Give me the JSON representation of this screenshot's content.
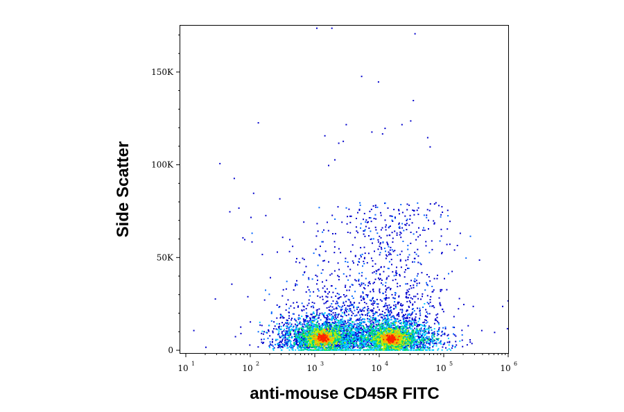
{
  "chart_data": {
    "type": "scatter",
    "subtype": "flow-cytometry-density-dot-plot",
    "xlabel": "anti-mouse CD45R FITC",
    "ylabel": "Side Scatter",
    "x_scale": "log",
    "xlim": [
      10,
      1000000
    ],
    "ylim": [
      0,
      175000
    ],
    "x_ticks": [
      {
        "value": 10,
        "base": "10",
        "exp": "1"
      },
      {
        "value": 100,
        "base": "10",
        "exp": "2"
      },
      {
        "value": 1000,
        "base": "10",
        "exp": "3"
      },
      {
        "value": 10000,
        "base": "10",
        "exp": "4"
      },
      {
        "value": 100000,
        "base": "10",
        "exp": "5"
      },
      {
        "value": 1000000,
        "base": "10",
        "exp": "6"
      }
    ],
    "y_ticks": [
      {
        "value": 0,
        "label": "0"
      },
      {
        "value": 50000,
        "label": "50K"
      },
      {
        "value": 100000,
        "label": "100K"
      },
      {
        "value": 150000,
        "label": "150K"
      }
    ],
    "grid": false,
    "legend": "none",
    "color_scale": [
      "#0000cc",
      "#0066ff",
      "#00ccff",
      "#00dd66",
      "#ccee00",
      "#ffaa00",
      "#ff2200"
    ],
    "populations": [
      {
        "center_x": 1300,
        "center_y": 7000,
        "peak_density": "high"
      },
      {
        "center_x": 15000,
        "center_y": 6500,
        "peak_density": "highest"
      }
    ],
    "outlier_points": [
      {
        "x": 13,
        "y": 11000
      },
      {
        "x": 20,
        "y": 2000
      },
      {
        "x": 28,
        "y": 28000
      },
      {
        "x": 33,
        "y": 101000
      },
      {
        "x": 47,
        "y": 75000
      },
      {
        "x": 55,
        "y": 93000
      },
      {
        "x": 65,
        "y": 77000
      },
      {
        "x": 75,
        "y": 61000
      },
      {
        "x": 80,
        "y": 60000
      },
      {
        "x": 100,
        "y": 72000
      },
      {
        "x": 110,
        "y": 85000
      },
      {
        "x": 130,
        "y": 123000
      },
      {
        "x": 150,
        "y": 52000
      },
      {
        "x": 170,
        "y": 73000
      },
      {
        "x": 280,
        "y": 82000
      },
      {
        "x": 400,
        "y": 60000
      },
      {
        "x": 500,
        "y": 48000
      },
      {
        "x": 1050,
        "y": 174000
      },
      {
        "x": 1800,
        "y": 174000
      },
      {
        "x": 1400,
        "y": 116000
      },
      {
        "x": 1600,
        "y": 100000
      },
      {
        "x": 2000,
        "y": 103000
      },
      {
        "x": 2300,
        "y": 112000
      },
      {
        "x": 2700,
        "y": 113000
      },
      {
        "x": 3000,
        "y": 122000
      },
      {
        "x": 5200,
        "y": 148000
      },
      {
        "x": 7500,
        "y": 118000
      },
      {
        "x": 9500,
        "y": 145000
      },
      {
        "x": 11000,
        "y": 117000
      },
      {
        "x": 12000,
        "y": 120000
      },
      {
        "x": 22000,
        "y": 122000
      },
      {
        "x": 30000,
        "y": 124000
      },
      {
        "x": 35000,
        "y": 171000
      },
      {
        "x": 33000,
        "y": 135000
      },
      {
        "x": 55000,
        "y": 115000
      },
      {
        "x": 60000,
        "y": 110000
      },
      {
        "x": 70000,
        "y": 39000
      },
      {
        "x": 100000,
        "y": 39000
      },
      {
        "x": 200000,
        "y": 25000
      },
      {
        "x": 280000,
        "y": 24000
      },
      {
        "x": 350000,
        "y": 49000
      },
      {
        "x": 380000,
        "y": 11000
      },
      {
        "x": 600000,
        "y": 10000
      },
      {
        "x": 800000,
        "y": 24000
      },
      {
        "x": 950000,
        "y": 12000
      },
      {
        "x": 970000,
        "y": 27000
      },
      {
        "x": 150000,
        "y": 8000
      },
      {
        "x": 250000,
        "y": 6000
      },
      {
        "x": 120000,
        "y": 5000
      },
      {
        "x": 70000,
        "y": 4000
      }
    ]
  }
}
